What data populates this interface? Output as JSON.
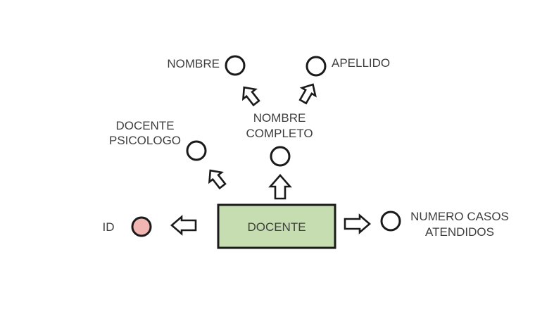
{
  "entity": {
    "label": "DOCENTE",
    "fill": "#c5ddb0"
  },
  "attributes": {
    "nombre": "NOMBRE",
    "apellido": "APELLIDO",
    "nombre_completo_line1": "NOMBRE",
    "nombre_completo_line2": "COMPLETO",
    "docente_psicologo_line1": "DOCENTE",
    "docente_psicologo_line2": "PSICOLOGO",
    "id": "ID",
    "numero_casos_line1": "NUMERO CASOS",
    "numero_casos_line2": "ATENDIDOS"
  },
  "colors": {
    "key_attribute_fill": "#f1b5b2",
    "attribute_fill": "#ffffff",
    "stroke": "#1a1a1a",
    "text": "#3f3f3f"
  }
}
